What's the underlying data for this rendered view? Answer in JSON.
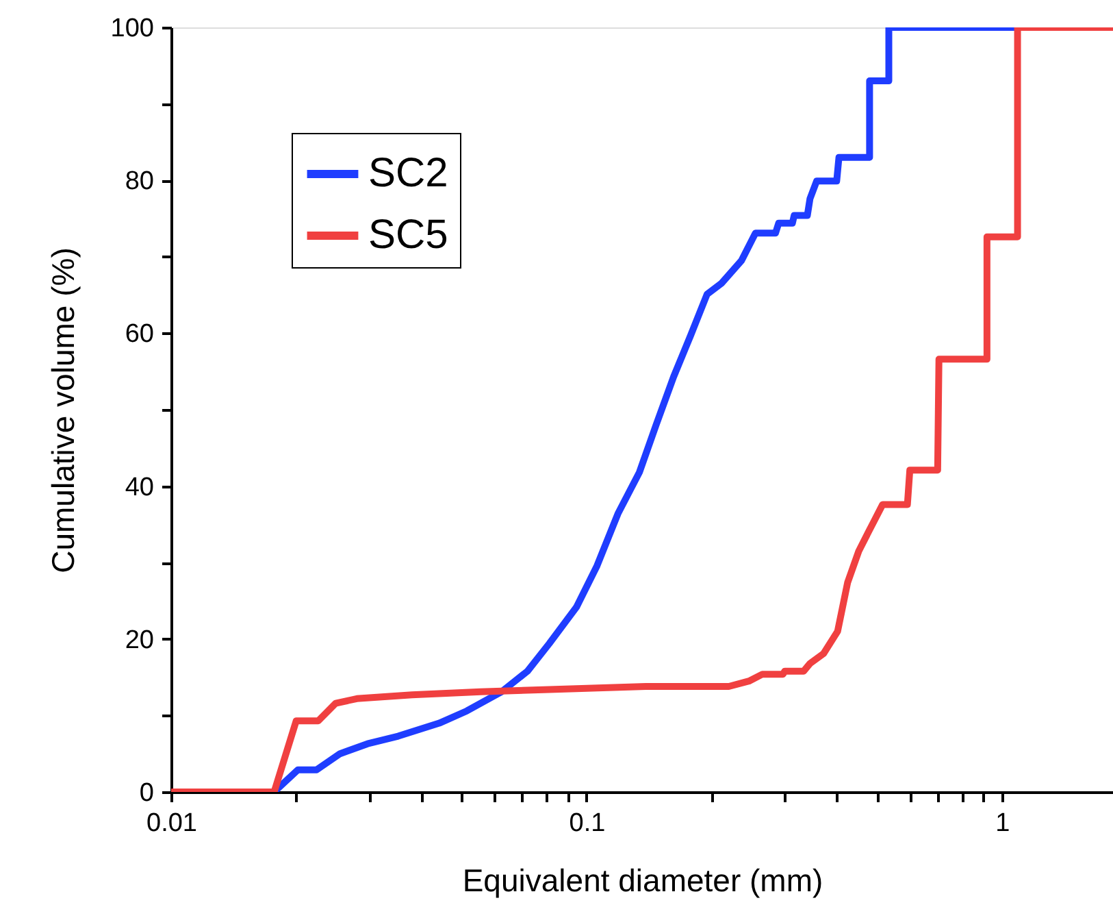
{
  "chart_data": {
    "type": "line",
    "xlabel": "Equivalent diameter (mm)",
    "ylabel": "Cumulative volume (%)",
    "log": "x",
    "xlim": [
      0.01,
      1.85
    ],
    "ylim": [
      0,
      100
    ],
    "xticks": [
      0.01,
      {
        "value": 0.02,
        "label": null
      },
      {
        "value": 0.03,
        "label": null
      },
      {
        "value": 0.04,
        "label": null
      },
      {
        "value": 0.05,
        "label": null
      },
      {
        "value": 0.06,
        "label": null
      },
      {
        "value": 0.07,
        "label": null
      },
      {
        "value": 0.08,
        "label": null
      },
      {
        "value": 0.09,
        "label": null
      },
      0.1,
      {
        "value": 0.2,
        "label": null
      },
      {
        "value": 0.3,
        "label": null
      },
      {
        "value": 0.4,
        "label": null
      },
      {
        "value": 0.5,
        "label": null
      },
      {
        "value": 0.6,
        "label": null
      },
      {
        "value": 0.7,
        "label": null
      },
      {
        "value": 0.8,
        "label": null
      },
      {
        "value": 0.9,
        "label": null
      },
      1
    ],
    "yticks": [
      0,
      {
        "value": 10,
        "label": null
      },
      20,
      {
        "value": 30,
        "label": null
      },
      40,
      {
        "value": 50,
        "label": null
      },
      60,
      {
        "value": 70,
        "label": null
      },
      80,
      {
        "value": 90,
        "label": null
      },
      100
    ],
    "grid": false,
    "legend": "top left",
    "line_style": "solid",
    "marker": "none",
    "series": [
      {
        "name": "SC2",
        "color": "#1f3dff",
        "x": [
          0.01,
          0.0177,
          0.0202,
          0.0224,
          0.0255,
          0.0297,
          0.0352,
          0.0442,
          0.0515,
          0.0624,
          0.0721,
          0.0813,
          0.0946,
          0.106,
          0.119,
          0.134,
          0.147,
          0.162,
          0.178,
          0.195,
          0.211,
          0.236,
          0.255,
          0.285,
          0.29,
          0.313,
          0.316,
          0.34,
          0.345,
          0.358,
          0.4,
          0.405,
          0.48,
          0.48,
          0.534,
          0.534,
          1.09
        ],
        "values": [
          0,
          0,
          2.9,
          2.9,
          5.0,
          6.3,
          7.3,
          9.0,
          10.6,
          13.1,
          15.8,
          19.4,
          24.2,
          29.6,
          36.4,
          41.8,
          48,
          54.3,
          59.7,
          65.1,
          66.5,
          69.5,
          73.1,
          73.1,
          74.4,
          74.4,
          75.4,
          75.4,
          77.6,
          79.9,
          79.9,
          83,
          83,
          93,
          93,
          100,
          100
        ]
      },
      {
        "name": "SC5",
        "color": "#f04040",
        "x": [
          0.01,
          0.0177,
          0.02,
          0.0226,
          0.0249,
          0.028,
          0.038,
          0.0556,
          0.0813,
          0.139,
          0.22,
          0.246,
          0.265,
          0.297,
          0.3,
          0.333,
          0.345,
          0.372,
          0.402,
          0.425,
          0.452,
          0.477,
          0.516,
          0.592,
          0.6,
          0.7,
          0.705,
          0.92,
          0.92,
          1.09,
          1.09,
          1.85
        ],
        "values": [
          0,
          0,
          9.3,
          9.3,
          11.6,
          12.2,
          12.7,
          13.1,
          13.4,
          13.8,
          13.8,
          14.5,
          15.4,
          15.4,
          15.8,
          15.8,
          16.8,
          18.1,
          21,
          27.4,
          31.5,
          34,
          37.6,
          37.6,
          42.1,
          42.1,
          56.6,
          56.6,
          72.6,
          72.6,
          100,
          100
        ]
      }
    ]
  }
}
